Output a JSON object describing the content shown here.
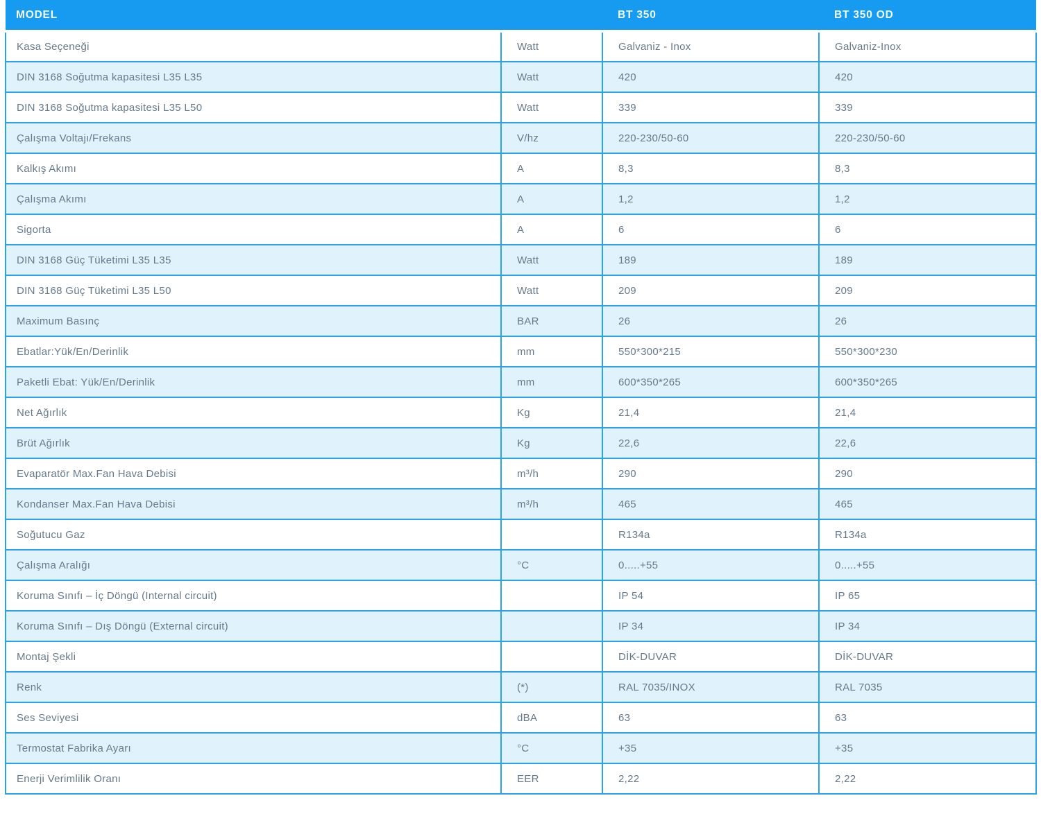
{
  "colors": {
    "header_bg": "#169bf0",
    "border": "#2ba3e6",
    "row_bg": "#ffffff",
    "row_alt_bg": "#e0f3fc",
    "header_text": "#f2faff",
    "body_text": "#66798a"
  },
  "table": {
    "header": {
      "model": "MODEL",
      "unit": "",
      "bt350": "BT 350",
      "bt350od": "BT 350 OD"
    },
    "rows": [
      {
        "label": "Kasa Seçeneği",
        "unit": "Watt",
        "bt350": "Galvaniz - Inox",
        "bt350od": "Galvaniz-Inox"
      },
      {
        "label": "DIN 3168 Soğutma kapasitesi L35 L35",
        "unit": "Watt",
        "bt350": "420",
        "bt350od": "420"
      },
      {
        "label": "DIN 3168 Soğutma kapasitesi L35 L50",
        "unit": "Watt",
        "bt350": "339",
        "bt350od": "339"
      },
      {
        "label": "Çalışma Voltajı/Frekans",
        "unit": "V/hz",
        "bt350": "220-230/50-60",
        "bt350od": "220-230/50-60"
      },
      {
        "label": "Kalkış Akımı",
        "unit": "A",
        "bt350": "8,3",
        "bt350od": "8,3"
      },
      {
        "label": "Çalışma Akımı",
        "unit": "A",
        "bt350": "1,2",
        "bt350od": "1,2"
      },
      {
        "label": "Sigorta",
        "unit": "A",
        "bt350": "6",
        "bt350od": "6"
      },
      {
        "label": "DIN 3168 Güç Tüketimi L35 L35",
        "unit": "Watt",
        "bt350": "189",
        "bt350od": "189"
      },
      {
        "label": "DIN 3168 Güç Tüketimi L35 L50",
        "unit": "Watt",
        "bt350": "209",
        "bt350od": "209"
      },
      {
        "label": "Maximum Basınç",
        "unit": "BAR",
        "bt350": "26",
        "bt350od": "26"
      },
      {
        "label": "Ebatlar:Yük/En/Derinlik",
        "unit": "mm",
        "bt350": "550*300*215",
        "bt350od": "550*300*230"
      },
      {
        "label": "Paketli Ebat: Yük/En/Derinlik",
        "unit": "mm",
        "bt350": "600*350*265",
        "bt350od": "600*350*265"
      },
      {
        "label": "Net Ağırlık",
        "unit": "Kg",
        "bt350": "21,4",
        "bt350od": "21,4"
      },
      {
        "label": "Brüt Ağırlık",
        "unit": "Kg",
        "bt350": "22,6",
        "bt350od": "22,6"
      },
      {
        "label": "Evaparatör Max.Fan Hava Debisi",
        "unit": "m³/h",
        "bt350": "290",
        "bt350od": "290"
      },
      {
        "label": "Kondanser Max.Fan Hava Debisi",
        "unit": "m³/h",
        "bt350": "465",
        "bt350od": "465"
      },
      {
        "label": "Soğutucu Gaz",
        "unit": "",
        "bt350": "R134a",
        "bt350od": "R134a"
      },
      {
        "label": "Çalışma Aralığı",
        "unit": "°C",
        "bt350": "0.....+55",
        "bt350od": "0.....+55"
      },
      {
        "label": "Koruma Sınıfı – İç Döngü (Internal circuit)",
        "unit": "",
        "bt350": "IP 54",
        "bt350od": "IP 65"
      },
      {
        "label": "Koruma Sınıfı – Dış Döngü (External circuit)",
        "unit": "",
        "bt350": "IP 34",
        "bt350od": "IP 34"
      },
      {
        "label": "Montaj Şekli",
        "unit": "",
        "bt350": "DİK-DUVAR",
        "bt350od": "DİK-DUVAR"
      },
      {
        "label": "Renk",
        "unit": "(*)",
        "bt350": "RAL 7035/INOX",
        "bt350od": "RAL 7035"
      },
      {
        "label": "Ses Seviyesi",
        "unit": "dBA",
        "bt350": "63",
        "bt350od": "63"
      },
      {
        "label": "Termostat Fabrika Ayarı",
        "unit": "°C",
        "bt350": "+35",
        "bt350od": "+35"
      },
      {
        "label": "Enerji Verimlilik Oranı",
        "unit": "EER",
        "bt350": "2,22",
        "bt350od": "2,22"
      }
    ]
  }
}
